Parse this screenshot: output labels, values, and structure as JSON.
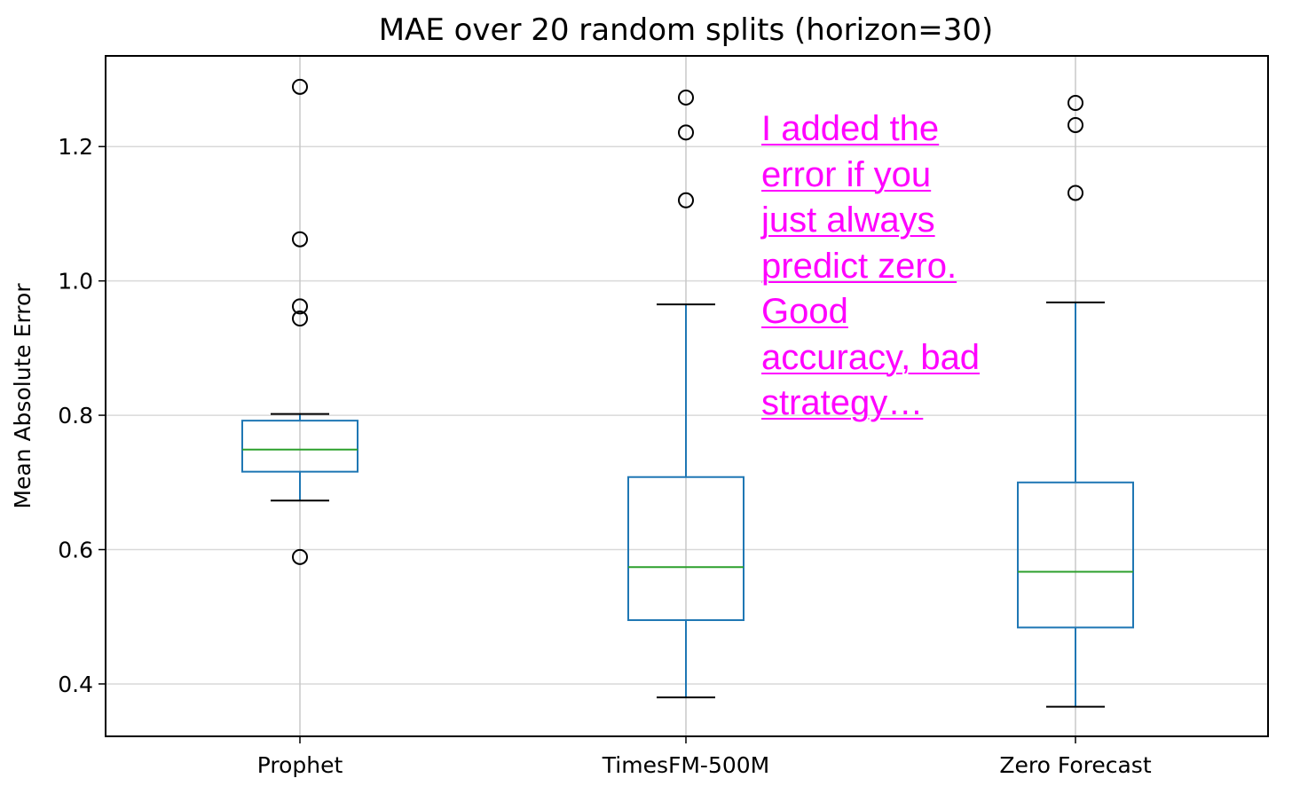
{
  "chart_data": {
    "type": "box",
    "title": "MAE over 20 random splits (horizon=30)",
    "xlabel": "",
    "ylabel": "Mean Absolute Error",
    "categories": [
      "Prophet",
      "TimesFM-500M",
      "Zero Forecast"
    ],
    "yticks": [
      "0.4",
      "0.6",
      "0.8",
      "1.0",
      "1.2"
    ],
    "ylim": [
      0.322,
      1.335
    ],
    "grid": true,
    "series": [
      {
        "q1": 0.716,
        "median": 0.749,
        "q3": 0.792,
        "whisker_low": 0.673,
        "whisker_high": 0.802,
        "outliers": [
          1.289,
          1.062,
          0.962,
          0.944,
          0.589
        ]
      },
      {
        "q1": 0.495,
        "median": 0.574,
        "q3": 0.708,
        "whisker_low": 0.38,
        "whisker_high": 0.965,
        "outliers": [
          1.273,
          1.221,
          1.12
        ]
      },
      {
        "q1": 0.484,
        "median": 0.567,
        "q3": 0.7,
        "whisker_low": 0.366,
        "whisker_high": 0.968,
        "outliers": [
          1.265,
          1.232,
          1.131
        ]
      }
    ],
    "colors": {
      "box": "#1f77b4",
      "median": "#2ca02c",
      "grid": "#d9d9d9",
      "frame": "#000000"
    }
  },
  "annotation": {
    "text": "I added the\nerror if you\njust always\npredict zero.\nGood\naccuracy, bad\nstrategy…",
    "color": "#ff00ff"
  }
}
